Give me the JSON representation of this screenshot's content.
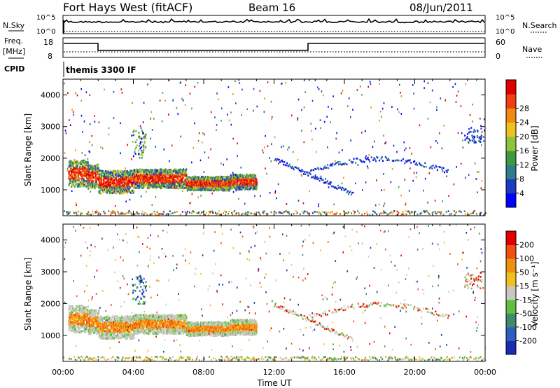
{
  "header": {
    "title": "Fort Hays West (fitACF)",
    "beam": "Beam 16",
    "date": "08/Jun/2011"
  },
  "params": {
    "nsky_label": "N.Sky",
    "nsearch_label": "N.Search",
    "nsky_ticks": [
      "10^5",
      "10^0"
    ],
    "nsearch_ticks": [
      "10^5",
      "10^0"
    ],
    "freq_label": "Freq.",
    "freq_unit": "[MHz]",
    "freq_ticks": [
      "18",
      "8"
    ],
    "nave_label": "Nave",
    "nave_ticks": [
      "60",
      "0"
    ],
    "cpid_label": "CPID",
    "cpid_value": "themis 3300 IF"
  },
  "chart_data": [
    {
      "type": "heatmap",
      "name": "power",
      "ylabel": "Slant Range [km]",
      "xlabel": "",
      "xlim": [
        0,
        24
      ],
      "ylim": [
        180,
        4500
      ],
      "yticks": [
        "1000",
        "2000",
        "3000",
        "4000"
      ],
      "colorbar": {
        "label": "Power [dB]",
        "ticks": [
          "4",
          "8",
          "12",
          "16",
          "20",
          "24",
          "28"
        ],
        "colors": [
          "#0000ff",
          "#1a3cc4",
          "#2e7d8c",
          "#3f9a3f",
          "#8fc33a",
          "#f0c020",
          "#f08a10",
          "#ee4010",
          "#dd0000"
        ]
      }
    },
    {
      "type": "heatmap",
      "name": "velocity",
      "ylabel": "Slant Range [km]",
      "xlabel": "Time UT",
      "xlim": [
        0,
        24
      ],
      "ylim": [
        180,
        4500
      ],
      "yticks": [
        "1000",
        "2000",
        "3000",
        "4000"
      ],
      "xticks": [
        "00:00",
        "04:00",
        "08:00",
        "12:00",
        "16:00",
        "20:00",
        "00:00"
      ],
      "colorbar": {
        "label": "Velocity [m s⁻¹]",
        "ticks": [
          "200",
          "100",
          "50",
          "15",
          "-15",
          "-50",
          "-100",
          "-200"
        ],
        "colors": [
          "#1a2cb0",
          "#2e5fbf",
          "#3f8a6a",
          "#5fc040",
          "#c8c8c0",
          "#f0c020",
          "#f09010",
          "#f05010",
          "#e00000"
        ]
      }
    }
  ]
}
